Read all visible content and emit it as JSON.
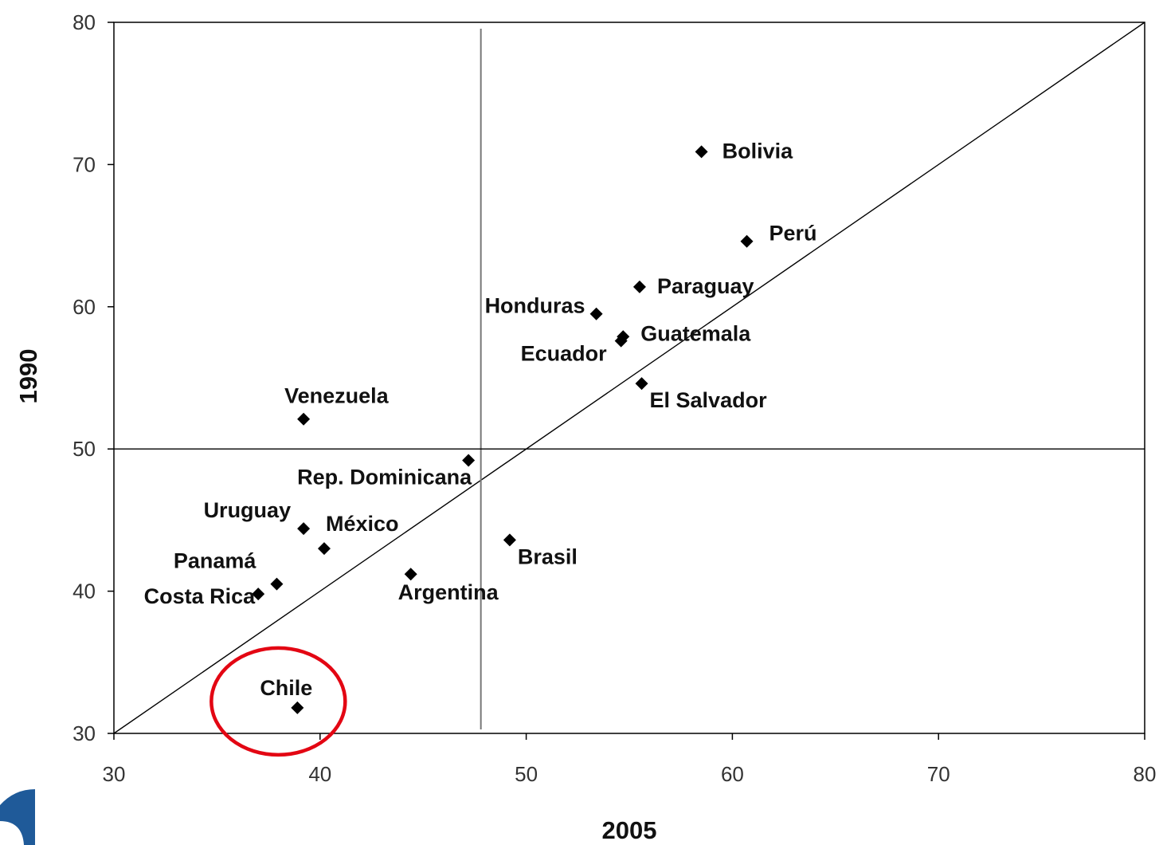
{
  "chart_data": {
    "type": "scatter",
    "title": "",
    "xlabel": "2005",
    "ylabel": "1990",
    "xlim": [
      30,
      80
    ],
    "ylim": [
      30,
      80
    ],
    "xticks": [
      "30",
      "40",
      "50",
      "60",
      "70",
      "80"
    ],
    "yticks": [
      "30",
      "40",
      "50",
      "60",
      "70",
      "80"
    ],
    "grid": false,
    "reference_lines": {
      "diagonal": true,
      "vertical_x": 47.8,
      "horizontal_y": 50
    },
    "highlight": {
      "point": "Chile",
      "shape": "circle",
      "color": "#e30613"
    },
    "marker_color": "#000000",
    "points": [
      {
        "label": "Bolivia",
        "x": 58.5,
        "y": 70.9
      },
      {
        "label": "Perú",
        "x": 60.7,
        "y": 64.6
      },
      {
        "label": "Paraguay",
        "x": 55.5,
        "y": 61.4
      },
      {
        "label": "Honduras",
        "x": 53.4,
        "y": 59.5
      },
      {
        "label": "Guatemala",
        "x": 54.7,
        "y": 57.9
      },
      {
        "label": "Ecuador",
        "x": 54.6,
        "y": 57.6
      },
      {
        "label": "El Salvador",
        "x": 55.6,
        "y": 54.6
      },
      {
        "label": "Venezuela",
        "x": 39.2,
        "y": 52.1
      },
      {
        "label": "Rep. Dominicana",
        "x": 47.2,
        "y": 49.2
      },
      {
        "label": "Uruguay",
        "x": 39.2,
        "y": 44.4
      },
      {
        "label": "México",
        "x": 40.2,
        "y": 43.0
      },
      {
        "label": "Brasil",
        "x": 49.2,
        "y": 43.6
      },
      {
        "label": "Argentina",
        "x": 44.4,
        "y": 41.2
      },
      {
        "label": "Panamá",
        "x": 37.9,
        "y": 40.5
      },
      {
        "label": "Costa Rica",
        "x": 37.0,
        "y": 39.8
      },
      {
        "label": "Chile",
        "x": 38.9,
        "y": 31.8
      }
    ]
  },
  "logo": {
    "color": "#1f5a99"
  }
}
